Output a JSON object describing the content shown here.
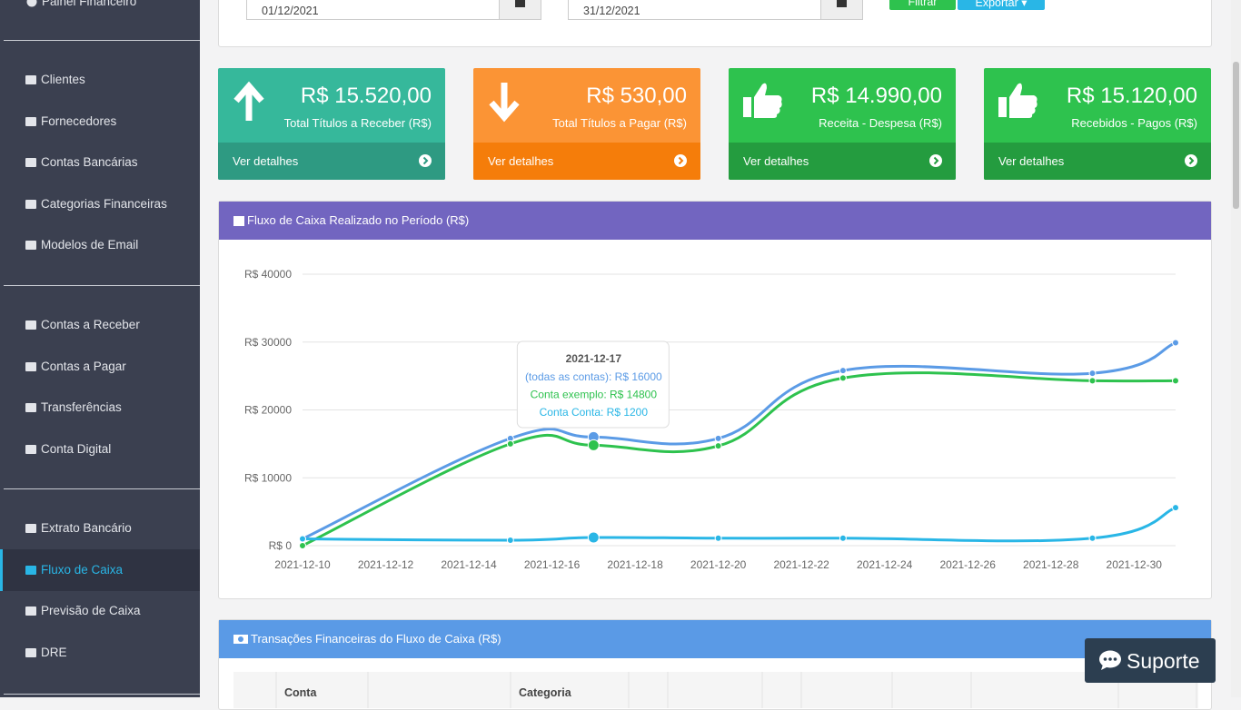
{
  "sidebar": {
    "title": "Painel Financeiro",
    "groups": [
      [
        "Clientes",
        "Fornecedores",
        "Contas Bancárias",
        "Categorias Financeiras",
        "Modelos de Email"
      ],
      [
        "Contas a Receber",
        "Contas a Pagar",
        "Transferências",
        "Conta Digital"
      ],
      [
        "Extrato Bancário",
        "Fluxo de Caixa",
        "Previsão de Caixa",
        "DRE"
      ]
    ],
    "active": [
      2,
      1
    ]
  },
  "filters": {
    "start": "01/12/2021",
    "end": "31/12/2021",
    "buttons": [
      "Filtrar",
      "Exportar"
    ]
  },
  "cards": [
    {
      "value": "R$ 15.520,00",
      "label": "Total Títulos a Receber (R$)",
      "link": "Ver detalhes",
      "color": "#36b89b",
      "footer_color": "#2e9a82",
      "icon": "up"
    },
    {
      "value": "R$ 530,00",
      "label": "Total Títulos a Pagar (R$)",
      "link": "Ver detalhes",
      "color": "#fb9435",
      "footer_color": "#f57d0a",
      "icon": "down"
    },
    {
      "value": "R$ 14.990,00",
      "label": "Receita - Despesa (R$)",
      "link": "Ver detalhes",
      "color": "#2ec24e",
      "footer_color": "#249c3f",
      "icon": "thumb"
    },
    {
      "value": "R$ 15.120,00",
      "label": "Recebidos - Pagos (R$)",
      "link": "Ver detalhes",
      "color": "#2ec24e",
      "footer_color": "#249c3f",
      "icon": "thumb"
    }
  ],
  "chart_panel": {
    "title": "Fluxo de Caixa Realizado no Período (R$)"
  },
  "chart_data": {
    "type": "line",
    "x": [
      "2021-12-10",
      "2021-12-15",
      "2021-12-17",
      "2021-12-20",
      "2021-12-23",
      "2021-12-29",
      "2021-12-31"
    ],
    "series": [
      {
        "name": "(todas as contas)",
        "color": "#5b9be6",
        "values": [
          1000,
          15800,
          16000,
          15800,
          25800,
          25400,
          29900
        ]
      },
      {
        "name": "Conta exemplo",
        "color": "#2ec24e",
        "values": [
          0,
          15000,
          14800,
          14700,
          24700,
          24300,
          24300
        ]
      },
      {
        "name": "Conta Conta",
        "color": "#29b6e6",
        "values": [
          1000,
          800,
          1200,
          1100,
          1100,
          1100,
          5600
        ]
      }
    ],
    "xlim": [
      "2021-12-10",
      "2021-12-31"
    ],
    "xticks": [
      "2021-12-10",
      "2021-12-12",
      "2021-12-14",
      "2021-12-16",
      "2021-12-18",
      "2021-12-20",
      "2021-12-22",
      "2021-12-24",
      "2021-12-26",
      "2021-12-28",
      "2021-12-30"
    ],
    "ylim": [
      0,
      40000
    ],
    "yticks": [
      {
        "value": 0,
        "label": "R$ 0"
      },
      {
        "value": 10000,
        "label": "R$ 10000"
      },
      {
        "value": 20000,
        "label": "R$ 20000"
      },
      {
        "value": 30000,
        "label": "R$ 30000"
      },
      {
        "value": 40000,
        "label": "R$ 40000"
      }
    ],
    "grid": true,
    "tooltip": {
      "index": 2,
      "title": "2021-12-17",
      "lines": [
        "(todas as contas): R$ 16000",
        "Conta exemplo: R$ 14800",
        "Conta Conta: R$ 1200"
      ]
    }
  },
  "table": {
    "title": "Transações Financeiras do Fluxo de Caixa (R$)",
    "headers": [
      "Conta",
      "Categoria"
    ]
  },
  "support": "Suporte"
}
